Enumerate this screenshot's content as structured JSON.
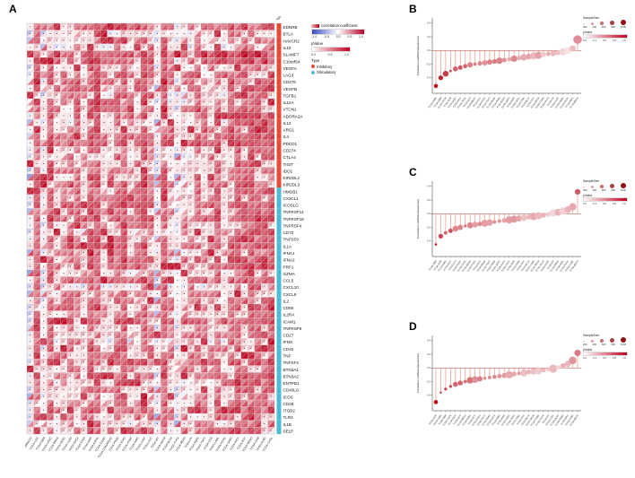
{
  "figure_labels": {
    "a": "A",
    "b": "B",
    "c": "C",
    "d": "D"
  },
  "panel_a": {
    "seed": 1234,
    "type_strip_label": "Type",
    "colors": {
      "neg": "#3B4CC0",
      "pos": "#B2182B",
      "p_high": "#C00020",
      "dot": "#1A1A1A"
    },
    "legend": {
      "corr_title": "correlation coefficient",
      "corr_ticks": [
        "-1.0",
        "-0.5",
        "0.0",
        "0.5",
        "1.0"
      ],
      "p_title": "pValue",
      "p_ticks": [
        "0.0",
        "0.5",
        "1.0"
      ],
      "type_title": "Type",
      "type_items": [
        {
          "label": "Inhibitory",
          "color": "#E64B35"
        },
        {
          "label": "Stimulatory",
          "color": "#4DBBD5"
        }
      ]
    }
  },
  "lollipop": {
    "y_axis_label": "Correlation coefficient(spearman)",
    "y_ticks": [
      "0.4",
      "0.2",
      "0.0",
      "-0.2",
      "-0.4"
    ],
    "legend": {
      "size_title": "SampleSize",
      "size_values": [
        "200",
        "400",
        "600",
        "800",
        "1000"
      ],
      "p_title": "pValue",
      "p_ticks": [
        "0.2",
        "0.4",
        "0.6",
        "0.8",
        "1.0"
      ]
    }
  },
  "chart_data": [
    {
      "id": "A",
      "type": "heatmap",
      "cell_encoding": "upper-left triangle = correlation coefficient, lower-right triangle = pValue, dot = not significant",
      "value_range": [
        -1,
        1
      ],
      "inhibitory_rows": 24,
      "rows": [
        "EDNRB",
        "BTLA",
        "HAVCR2",
        "IL10",
        "SLAMF7",
        "C10orf54",
        "VEGFA",
        "LAG3",
        "CD276",
        "VEGFB",
        "TGFB1",
        "IL12A",
        "VTCN1",
        "ADORA2A",
        "IL13",
        "ARG1",
        "IL4",
        "PDCD1",
        "CD274",
        "CTLA4",
        "TIGIT",
        "IDO1",
        "KIR2DL1",
        "KIR2DL3",
        "HMGB1",
        "CX3CL1",
        "ICOSLG",
        "TNFRSF14",
        "TNFRSF18",
        "TNFRSF4",
        "CD70",
        "TNFSF9",
        "IL1A",
        "IFNA1",
        "IFNA2",
        "PRF1",
        "GZMA",
        "CCL5",
        "CXCL10",
        "CXCL9",
        "IL2",
        "CD80",
        "IL2RA",
        "ICAM1",
        "TNFRSF9",
        "CD27",
        "IFNG",
        "CD40",
        "TNF",
        "TNFSF4",
        "BTN3A1",
        "BTN3A2",
        "ENTPD1",
        "CD40LG",
        "ICOS",
        "CD28",
        "ITGB2",
        "TLR4",
        "IL1B",
        "SELP"
      ],
      "columns": [
        "TCGA-GBMLGG",
        "TCGA-LGG",
        "TCGA-GBM",
        "TCGA-UCEC",
        "TCGA-BRCA",
        "TCGA-CESC",
        "TCGA-LUAD",
        "TCGA-ESCA",
        "TCGA-STES",
        "TCGA-KIRP",
        "TCGA-KIPAN",
        "TCGA-COAD",
        "TCGA-COADREAD",
        "TCGA-PRAD",
        "TCGA-STAD",
        "TCGA-HNSC",
        "TCGA-KIRC",
        "TCGA-LUSC",
        "TCGA-LIHC",
        "TCGA-WT",
        "TCGA-SKCM",
        "TCGA-BLCA",
        "TCGA-THCA",
        "TCGA-READ",
        "TCGA-OV",
        "TCGA-PAAD",
        "TCGA-TGCT",
        "TCGA-UCS",
        "TCGA-LAML",
        "TCGA-PCPG",
        "TCGA-SARC",
        "TCGA-KICH",
        "TCGA-ACC",
        "TCGA-MESO",
        "TCGA-UVM",
        "TCGA-DLBC",
        "TCGA-CHOL"
      ]
    },
    {
      "id": "B",
      "type": "scatter",
      "ylabel": "Correlation coefficient(spearman)",
      "seed": 11,
      "x": [
        "TCGA-LAML",
        "TCGA-GBM",
        "TCGA-THYM",
        "TCGA-UVM",
        "TCGA-DLBC",
        "TCGA-KICH",
        "TCGA-CHOL",
        "TCGA-UCS",
        "TCGA-MESO",
        "TCGA-ACC",
        "TCGA-PCPG",
        "TCGA-TGCT",
        "TCGA-READ",
        "TCGA-PAAD",
        "TCGA-ESCA",
        "TCGA-SARC",
        "TCGA-KIRP",
        "TCGA-CESC",
        "TCGA-STAD",
        "TCGA-BLCA",
        "TCGA-LIHC",
        "TCGA-SKCM",
        "TCGA-COAD",
        "TCGA-THCA",
        "TCGA-OV",
        "TCGA-LUSC",
        "TCGA-PRAD",
        "TCGA-HNSC",
        "TCGA-KIRC",
        "TCGA-BRCA"
      ],
      "y": [
        -0.52,
        -0.4,
        -0.34,
        -0.3,
        -0.27,
        -0.25,
        -0.23,
        -0.21,
        -0.2,
        -0.19,
        -0.18,
        -0.17,
        -0.16,
        -0.15,
        -0.14,
        -0.13,
        -0.12,
        -0.11,
        -0.1,
        -0.09,
        -0.08,
        -0.07,
        -0.06,
        -0.05,
        -0.04,
        -0.03,
        -0.02,
        0.0,
        0.03,
        0.16
      ]
    },
    {
      "id": "C",
      "type": "scatter",
      "ylabel": "Correlation coefficient(spearman)",
      "seed": 23,
      "x": [
        "TCGA-GBM",
        "TCGA-UVM",
        "TCGA-LAML",
        "TCGA-KICH",
        "TCGA-UCS",
        "TCGA-DLBC",
        "TCGA-CHOL",
        "TCGA-MESO",
        "TCGA-PCPG",
        "TCGA-ACC",
        "TCGA-READ",
        "TCGA-TGCT",
        "TCGA-PAAD",
        "TCGA-SARC",
        "TCGA-ESCA",
        "TCGA-CESC",
        "TCGA-KIRP",
        "TCGA-STAD",
        "TCGA-LIHC",
        "TCGA-BLCA",
        "TCGA-COAD",
        "TCGA-SKCM",
        "TCGA-THCA",
        "TCGA-LUSC",
        "TCGA-OV",
        "TCGA-PRAD",
        "TCGA-KIRC",
        "TCGA-HNSC",
        "TCGA-LUAD",
        "TCGA-BRCA"
      ],
      "y": [
        -0.45,
        -0.33,
        -0.28,
        -0.25,
        -0.22,
        -0.2,
        -0.18,
        -0.17,
        -0.16,
        -0.15,
        -0.14,
        -0.13,
        -0.12,
        -0.11,
        -0.1,
        -0.09,
        -0.08,
        -0.07,
        -0.06,
        -0.05,
        -0.04,
        -0.03,
        -0.02,
        -0.01,
        0.01,
        0.02,
        0.04,
        0.06,
        0.1,
        0.32
      ]
    },
    {
      "id": "D",
      "type": "scatter",
      "ylabel": "Correlation coefficient(spearman)",
      "seed": 37,
      "x": [
        "TCGA-UVM",
        "TCGA-LAML",
        "TCGA-GBM",
        "TCGA-CHOL",
        "TCGA-KICH",
        "TCGA-UCS",
        "TCGA-MESO",
        "TCGA-DLBC",
        "TCGA-ACC",
        "TCGA-PCPG",
        "TCGA-TGCT",
        "TCGA-READ",
        "TCGA-ESCA",
        "TCGA-PAAD",
        "TCGA-KIRP",
        "TCGA-SARC",
        "TCGA-CESC",
        "TCGA-STAD",
        "TCGA-LIHC",
        "TCGA-BLCA",
        "TCGA-SKCM",
        "TCGA-COAD",
        "TCGA-THCA",
        "TCGA-OV",
        "TCGA-LUSC",
        "TCGA-HNSC",
        "TCGA-PRAD",
        "TCGA-KIRC",
        "TCGA-LUAD",
        "TCGA-BRCA"
      ],
      "y": [
        -0.5,
        -0.36,
        -0.31,
        -0.27,
        -0.24,
        -0.22,
        -0.2,
        -0.18,
        -0.17,
        -0.16,
        -0.15,
        -0.14,
        -0.13,
        -0.12,
        -0.11,
        -0.1,
        -0.09,
        -0.08,
        -0.07,
        -0.06,
        -0.05,
        -0.04,
        -0.03,
        -0.02,
        -0.01,
        0.01,
        0.03,
        0.06,
        0.11,
        0.22
      ]
    }
  ]
}
